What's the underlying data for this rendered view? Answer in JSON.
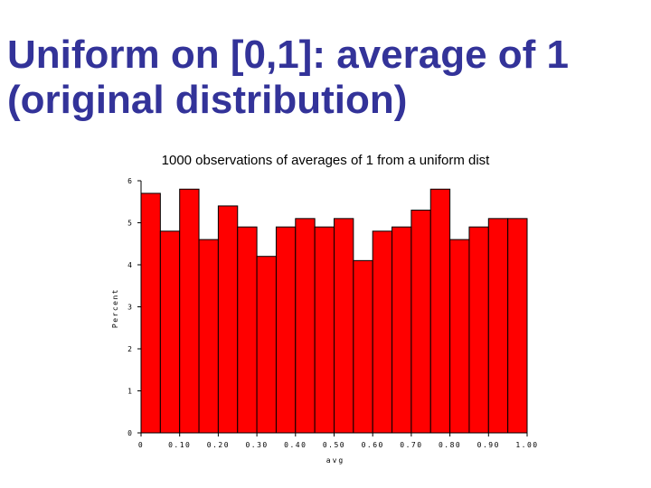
{
  "slide": {
    "title_line1": "Uniform on [0,1]: average of 1",
    "title_line2": "(original distribution)"
  },
  "colors": {
    "title": "#333399",
    "bar_fill": "#ff0000",
    "bar_stroke": "#000000",
    "axis": "#000000"
  },
  "chart_data": {
    "type": "bar",
    "title": "1000 observations of averages of 1 from a uniform dist",
    "xlabel": "avg",
    "ylabel": "Percent",
    "bin_width": 0.05,
    "bin_starts": [
      0,
      0.05,
      0.1,
      0.15,
      0.2,
      0.25,
      0.3,
      0.35,
      0.4,
      0.45,
      0.5,
      0.55,
      0.6,
      0.65,
      0.7,
      0.75,
      0.8,
      0.85,
      0.9,
      0.95
    ],
    "values": [
      5.7,
      4.8,
      5.8,
      4.6,
      5.4,
      4.9,
      4.2,
      4.9,
      5.1,
      4.9,
      5.1,
      4.1,
      4.8,
      4.9,
      5.3,
      5.8,
      4.6,
      4.9,
      5.1,
      5.1
    ],
    "xlim": [
      0,
      1
    ],
    "ylim": [
      0,
      6
    ],
    "x_ticks": [
      0,
      0.1,
      0.2,
      0.3,
      0.4,
      0.5,
      0.6,
      0.7,
      0.8,
      0.9,
      1.0
    ],
    "x_tick_labels": [
      "0",
      "0.10",
      "0.20",
      "0.30",
      "0.40",
      "0.50",
      "0.60",
      "0.70",
      "0.80",
      "0.90",
      "1.00"
    ],
    "y_ticks": [
      0,
      1,
      2,
      3,
      4,
      5,
      6
    ],
    "y_tick_labels": [
      "0",
      "1",
      "2",
      "3",
      "4",
      "5",
      "6"
    ],
    "grid": false,
    "legend": "none"
  }
}
